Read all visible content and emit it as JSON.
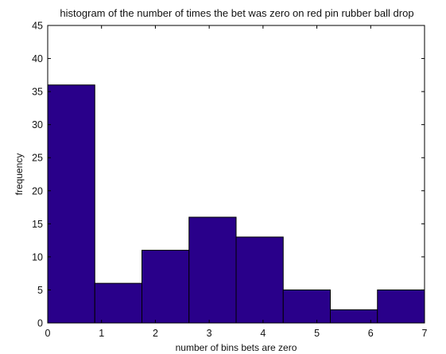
{
  "chart_data": {
    "type": "bar",
    "title": "histogram of the number of times the bet was zero on red pin rubber ball drop",
    "xlabel": "number of bins bets are zero",
    "ylabel": "frequency",
    "bin_edges": [
      0,
      0.875,
      1.75,
      2.625,
      3.5,
      4.375,
      5.25,
      6.125,
      7
    ],
    "values": [
      36,
      6,
      11,
      16,
      13,
      5,
      2,
      5
    ],
    "xlim": [
      0,
      7
    ],
    "ylim": [
      0,
      45
    ],
    "x_ticks": [
      0,
      1,
      2,
      3,
      4,
      5,
      6,
      7
    ],
    "y_ticks": [
      0,
      5,
      10,
      15,
      20,
      25,
      30,
      35,
      40,
      45
    ],
    "x_tick_labels": [
      "0",
      "1",
      "2",
      "3",
      "4",
      "5",
      "6",
      "7"
    ],
    "y_tick_labels": [
      "0",
      "5",
      "10",
      "15",
      "20",
      "25",
      "30",
      "35",
      "40",
      "45"
    ],
    "grid": false,
    "colors": {
      "bar_fill": "#29008a",
      "bar_edge": "#000000",
      "axes": "#000000",
      "background": "#ffffff"
    }
  }
}
